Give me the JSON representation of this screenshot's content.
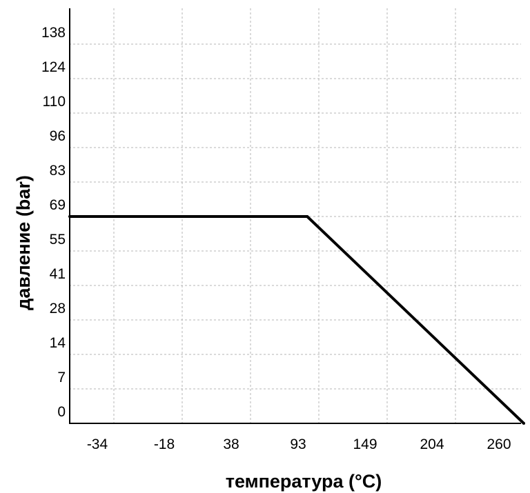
{
  "chart_data": {
    "type": "line",
    "title": "",
    "xlabel": "температура (°C)",
    "ylabel": "давление (bar)",
    "x_ticks": [
      "-34",
      "-18",
      "38",
      "93",
      "149",
      "204",
      "260"
    ],
    "y_ticks": [
      "0",
      "7",
      "14",
      "28",
      "41",
      "55",
      "69",
      "83",
      "96",
      "110",
      "124",
      "138"
    ],
    "grid": true,
    "legend": "none",
    "series": [
      {
        "color": "#000000",
        "points": [
          {
            "x_index": 0.0,
            "y_index": 6.0
          },
          {
            "x_index": 2.83,
            "y_index": 6.0
          },
          {
            "x_index": 6.0,
            "y_index": 0.0
          }
        ]
      }
    ]
  }
}
